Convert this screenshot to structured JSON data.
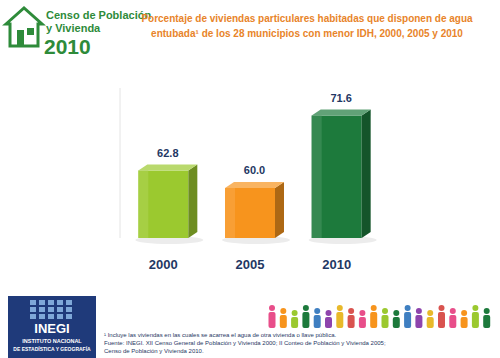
{
  "chart_data": {
    "type": "bar",
    "title": [
      "Porcentaje de viviendas particulares habitadas que disponen de agua",
      "entubada¹ de los 28 municipios con menor IDH, 2000, 2005 y 2010"
    ],
    "categories": [
      "2000",
      "2005",
      "2010"
    ],
    "values": [
      62.8,
      60.0,
      71.6
    ],
    "value_labels": [
      "62.8",
      "60.0",
      "71.6"
    ],
    "colors": [
      "#9bc92f",
      "#f7941d",
      "#1d7a3c"
    ],
    "ylim": [
      52,
      76
    ],
    "data_labels": true,
    "tick_labels": "x",
    "grid": false,
    "annotations": {
      "logo": [
        "Censo de Población",
        "y Vivienda",
        "2010"
      ],
      "inegi_logo": [
        "INEGI",
        "INSTITUTO NACIONAL",
        "DE ESTADÍSTICA Y GEOGRAFÍA"
      ],
      "footnote": "¹ Incluye las viviendas en las cuales se acarrea el agua de otra vivienda o llave pública.",
      "source": [
        "Fuente: INEGI. XII Censo General de Población y Vivienda 2000; II Conteo de Población y Vivienda 2005;",
        "Censo de Población y Vivienda 2010."
      ]
    }
  }
}
